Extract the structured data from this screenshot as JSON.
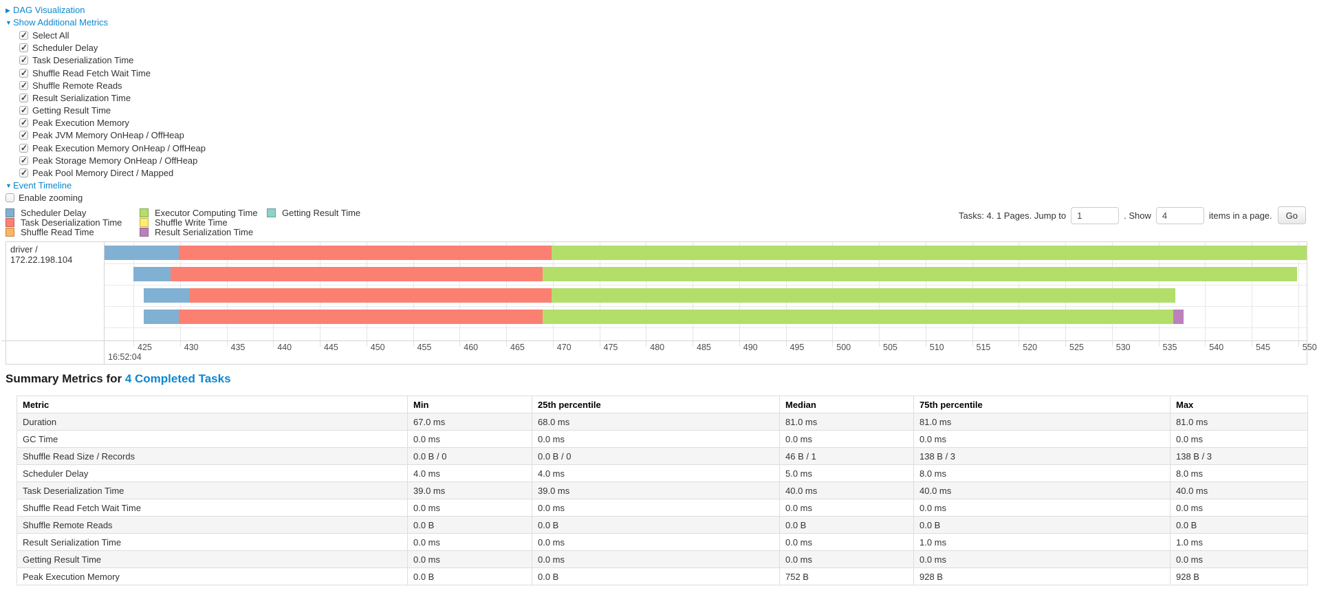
{
  "controls": {
    "dag_link": "DAG Visualization",
    "metrics_link": "Show Additional Metrics",
    "timeline_link": "Event Timeline",
    "metric_checkboxes": [
      "Select All",
      "Scheduler Delay",
      "Task Deserialization Time",
      "Shuffle Read Fetch Wait Time",
      "Shuffle Remote Reads",
      "Result Serialization Time",
      "Getting Result Time",
      "Peak Execution Memory",
      "Peak JVM Memory OnHeap / OffHeap",
      "Peak Execution Memory OnHeap / OffHeap",
      "Peak Storage Memory OnHeap / OffHeap",
      "Peak Pool Memory Direct / Mapped"
    ],
    "enable_zooming_label": "Enable zooming"
  },
  "pagination": {
    "prefix": "Tasks: 4. 1 Pages. Jump to",
    "jump_value": "1",
    "mid": ". Show",
    "show_value": "4",
    "suffix": "items in a page.",
    "go_label": "Go"
  },
  "chart_data": {
    "type": "timeline",
    "group_label": "driver / 172.22.198.104",
    "axis_min": 421.9,
    "axis_max": 550.9,
    "tick_step": 5,
    "ticks": [
      425,
      430,
      435,
      440,
      445,
      450,
      455,
      460,
      465,
      470,
      475,
      480,
      485,
      490,
      495,
      500,
      505,
      510,
      515,
      520,
      525,
      530,
      535,
      540,
      545,
      550
    ],
    "major_tick_label": "16:52:04",
    "colors": {
      "scheduler_delay": "#80B1D3",
      "task_deserialization": "#FB8072",
      "shuffle_read": "#FDB462",
      "executor_computing": "#B3DE69",
      "shuffle_write": "#FFED6F",
      "result_serialization": "#BC80BD",
      "getting_result": "#8DD3C7"
    },
    "legend_columns": [
      [
        {
          "key": "scheduler_delay",
          "label": "Scheduler Delay"
        },
        {
          "key": "task_deserialization",
          "label": "Task Deserialization Time"
        },
        {
          "key": "shuffle_read",
          "label": "Shuffle Read Time"
        }
      ],
      [
        {
          "key": "executor_computing",
          "label": "Executor Computing Time"
        },
        {
          "key": "shuffle_write",
          "label": "Shuffle Write Time"
        },
        {
          "key": "result_serialization",
          "label": "Result Serialization Time"
        }
      ],
      [
        {
          "key": "getting_result",
          "label": "Getting Result Time"
        }
      ]
    ],
    "tasks": [
      {
        "segments": [
          {
            "metric": "scheduler_delay",
            "start": 421.9,
            "end": 429.9
          },
          {
            "metric": "task_deserialization",
            "start": 429.9,
            "end": 469.9
          },
          {
            "metric": "executor_computing",
            "start": 469.9,
            "end": 550.9
          }
        ]
      },
      {
        "segments": [
          {
            "metric": "scheduler_delay",
            "start": 425.0,
            "end": 429.0
          },
          {
            "metric": "task_deserialization",
            "start": 429.0,
            "end": 468.9
          },
          {
            "metric": "executor_computing",
            "start": 468.9,
            "end": 549.9
          }
        ]
      },
      {
        "segments": [
          {
            "metric": "scheduler_delay",
            "start": 426.1,
            "end": 431.0
          },
          {
            "metric": "task_deserialization",
            "start": 431.0,
            "end": 469.9
          },
          {
            "metric": "executor_computing",
            "start": 469.9,
            "end": 536.8
          }
        ]
      },
      {
        "segments": [
          {
            "metric": "scheduler_delay",
            "start": 426.1,
            "end": 429.9
          },
          {
            "metric": "task_deserialization",
            "start": 429.9,
            "end": 468.9
          },
          {
            "metric": "executor_computing",
            "start": 468.9,
            "end": 536.6
          },
          {
            "metric": "result_serialization",
            "start": 536.6,
            "end": 537.7
          }
        ]
      }
    ]
  },
  "summary": {
    "heading_prefix": "Summary Metrics for ",
    "heading_link": "4 Completed Tasks",
    "table": {
      "headers": [
        "Metric",
        "Min",
        "25th percentile",
        "Median",
        "75th percentile",
        "Max"
      ],
      "rows": [
        [
          "Duration",
          "67.0 ms",
          "68.0 ms",
          "81.0 ms",
          "81.0 ms",
          "81.0 ms"
        ],
        [
          "GC Time",
          "0.0 ms",
          "0.0 ms",
          "0.0 ms",
          "0.0 ms",
          "0.0 ms"
        ],
        [
          "Shuffle Read Size / Records",
          "0.0 B / 0",
          "0.0 B / 0",
          "46 B / 1",
          "138 B / 3",
          "138 B / 3"
        ],
        [
          "Scheduler Delay",
          "4.0 ms",
          "4.0 ms",
          "5.0 ms",
          "8.0 ms",
          "8.0 ms"
        ],
        [
          "Task Deserialization Time",
          "39.0 ms",
          "39.0 ms",
          "40.0 ms",
          "40.0 ms",
          "40.0 ms"
        ],
        [
          "Shuffle Read Fetch Wait Time",
          "0.0 ms",
          "0.0 ms",
          "0.0 ms",
          "0.0 ms",
          "0.0 ms"
        ],
        [
          "Shuffle Remote Reads",
          "0.0 B",
          "0.0 B",
          "0.0 B",
          "0.0 B",
          "0.0 B"
        ],
        [
          "Result Serialization Time",
          "0.0 ms",
          "0.0 ms",
          "0.0 ms",
          "1.0 ms",
          "1.0 ms"
        ],
        [
          "Getting Result Time",
          "0.0 ms",
          "0.0 ms",
          "0.0 ms",
          "0.0 ms",
          "0.0 ms"
        ],
        [
          "Peak Execution Memory",
          "0.0 B",
          "0.0 B",
          "752 B",
          "928 B",
          "928 B"
        ]
      ]
    }
  }
}
